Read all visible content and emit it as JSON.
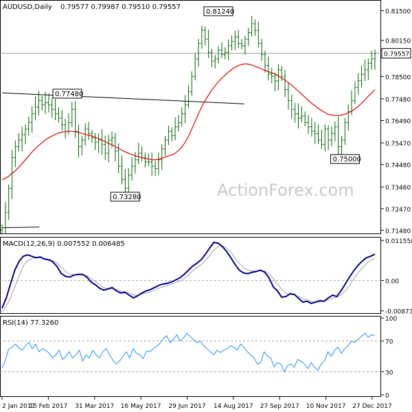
{
  "header": {
    "symbol": "AUDUSD,Daily",
    "ohlc": "0.79577 0.79987 0.79510 0.79557"
  },
  "watermark": "ActionForex.com",
  "colors": {
    "bars": "#006400",
    "ma": "#e00000",
    "macd": "#00008b",
    "signal": "#a0a0a0",
    "rsi": "#1e90ff",
    "frame": "#000000",
    "level": "#a0a0a0"
  },
  "chart_data": [
    {
      "type": "ohlc",
      "panel": "price",
      "ylim": [
        0.714,
        0.818
      ],
      "y_ticks": [
        "0.81500",
        "0.80150",
        "0.78500",
        "0.77480",
        "0.76490",
        "0.75470",
        "0.74480",
        "0.73460",
        "0.72470",
        "0.71480"
      ],
      "current_price": "0.79557",
      "annotations": [
        {
          "label": "0.81240",
          "x": 116,
          "value": 0.8124
        },
        {
          "label": "0.77480",
          "x": 35,
          "value": 0.7748
        },
        {
          "label": "0.73280",
          "x": 66,
          "value": 0.7328
        },
        {
          "label": "0.75000",
          "x": 184,
          "value": 0.75
        }
      ],
      "trendlines": [
        {
          "x1": 0,
          "v1": 0.7775,
          "x2": 65,
          "v2": 0.7725
        },
        {
          "x1": 0,
          "v1": 0.716,
          "x2": 10,
          "v2": 0.7163
        }
      ],
      "closes": [
        0.716,
        0.723,
        0.734,
        0.748,
        0.753,
        0.756,
        0.7585,
        0.761,
        0.764,
        0.768,
        0.771,
        0.774,
        0.772,
        0.773,
        0.772,
        0.77,
        0.768,
        0.766,
        0.763,
        0.76,
        0.764,
        0.77,
        0.76,
        0.753,
        0.756,
        0.761,
        0.759,
        0.757,
        0.755,
        0.756,
        0.754,
        0.75,
        0.756,
        0.757,
        0.751,
        0.744,
        0.738,
        0.734,
        0.74,
        0.744,
        0.747,
        0.75,
        0.748,
        0.746,
        0.746,
        0.744,
        0.743,
        0.747,
        0.752,
        0.756,
        0.76,
        0.758,
        0.762,
        0.764,
        0.768,
        0.772,
        0.778,
        0.785,
        0.793,
        0.8,
        0.806,
        0.802,
        0.796,
        0.792,
        0.793,
        0.797,
        0.795,
        0.796,
        0.799,
        0.801,
        0.803,
        0.8,
        0.799,
        0.802,
        0.805,
        0.809,
        0.806,
        0.8,
        0.795,
        0.79,
        0.786,
        0.785,
        0.783,
        0.788,
        0.785,
        0.779,
        0.774,
        0.77,
        0.768,
        0.766,
        0.767,
        0.764,
        0.762,
        0.76,
        0.759,
        0.756,
        0.754,
        0.761,
        0.756,
        0.759,
        0.762,
        0.753,
        0.756,
        0.764,
        0.769,
        0.774,
        0.78,
        0.783,
        0.786,
        0.788,
        0.791,
        0.793,
        0.7956
      ],
      "ma": [
        0.738,
        0.7385,
        0.7395,
        0.7408,
        0.742,
        0.7435,
        0.7452,
        0.747,
        0.7487,
        0.7505,
        0.752,
        0.7535,
        0.7548,
        0.756,
        0.757,
        0.7578,
        0.7586,
        0.7592,
        0.7596,
        0.7598,
        0.76,
        0.76,
        0.7598,
        0.7594,
        0.759,
        0.7586,
        0.7582,
        0.7578,
        0.7572,
        0.7566,
        0.756,
        0.7552,
        0.7545,
        0.7538,
        0.753,
        0.7522,
        0.7514,
        0.7506,
        0.75,
        0.7494,
        0.7488,
        0.7484,
        0.748,
        0.7476,
        0.7473,
        0.747,
        0.747,
        0.7472,
        0.7476,
        0.7482,
        0.7488,
        0.7492,
        0.75,
        0.7512,
        0.7528,
        0.755,
        0.7578,
        0.761,
        0.7645,
        0.768,
        0.7712,
        0.774,
        0.7765,
        0.7788,
        0.7808,
        0.7826,
        0.7842,
        0.7856,
        0.787,
        0.7882,
        0.7892,
        0.79,
        0.7905,
        0.7908,
        0.7906,
        0.7902,
        0.7896,
        0.789,
        0.7884,
        0.7878,
        0.7872,
        0.7866,
        0.786,
        0.7852,
        0.7843,
        0.7833,
        0.7822,
        0.781,
        0.7797,
        0.7783,
        0.7769,
        0.7755,
        0.7741,
        0.7728,
        0.7716,
        0.7704,
        0.7694,
        0.7685,
        0.7678,
        0.7674,
        0.7672,
        0.7672,
        0.7674,
        0.7678,
        0.7684,
        0.7692,
        0.7702,
        0.7714,
        0.7728,
        0.7744,
        0.776,
        0.7775,
        0.779
      ]
    },
    {
      "type": "line",
      "panel": "macd",
      "title": "MACD(12,26,9) 0.007552 0.006485",
      "ylim": [
        -0.0092,
        0.012
      ],
      "y_ticks": [
        "0.011558",
        "0.00",
        "-0.00873"
      ],
      "series": [
        {
          "name": "macd",
          "values": [
            -0.008,
            -0.005,
            -0.001,
            0.003,
            0.0055,
            0.007,
            0.0074,
            0.007,
            0.0066,
            0.0068,
            0.0062,
            0.006,
            0.0054,
            0.004,
            0.002,
            0.0012,
            0.001,
            0.0016,
            0.0018,
            0.0018,
            0.001,
            -0.0004,
            -0.0012,
            -0.0022,
            -0.0028,
            -0.0024,
            -0.002,
            -0.003,
            -0.0036,
            -0.0034,
            -0.0042,
            -0.005,
            -0.0044,
            -0.0036,
            -0.003,
            -0.0026,
            -0.002,
            -0.0014,
            -0.001,
            -0.0008,
            -0.0004,
            0.0002,
            0.0008,
            0.0018,
            0.003,
            0.0042,
            0.005,
            0.006,
            0.0076,
            0.0094,
            0.011,
            0.0108,
            0.0098,
            0.0084,
            0.0066,
            0.0046,
            0.003,
            0.0022,
            0.002,
            0.0024,
            0.0026,
            0.003,
            0.0024,
            0.0008,
            -0.0018,
            -0.003,
            -0.0048,
            -0.0046,
            -0.0038,
            -0.004,
            -0.0052,
            -0.0062,
            -0.006,
            -0.0066,
            -0.0062,
            -0.0058,
            -0.006,
            -0.005,
            -0.0042,
            -0.0046,
            -0.003,
            -0.001,
            0.001,
            0.0028,
            0.0044,
            0.0056,
            0.0066,
            0.007,
            0.0076
          ]
        },
        {
          "name": "signal",
          "values": [
            -0.009,
            -0.0074,
            -0.005,
            -0.002,
            0.0014,
            0.0042,
            0.0058,
            0.0064,
            0.0066,
            0.0066,
            0.0064,
            0.0062,
            0.0058,
            0.005,
            0.0038,
            0.0026,
            0.0018,
            0.0016,
            0.0016,
            0.0016,
            0.0014,
            0.0006,
            -0.0002,
            -0.0012,
            -0.002,
            -0.0024,
            -0.0024,
            -0.0026,
            -0.003,
            -0.0032,
            -0.0036,
            -0.0042,
            -0.0042,
            -0.004,
            -0.0036,
            -0.0032,
            -0.0028,
            -0.0022,
            -0.0018,
            -0.0014,
            -0.001,
            -0.0006,
            -0.0002,
            0.0006,
            0.0016,
            0.0028,
            0.0038,
            0.0046,
            0.0058,
            0.0072,
            0.0088,
            0.0098,
            0.01,
            0.0094,
            0.0082,
            0.0066,
            0.005,
            0.0038,
            0.003,
            0.0028,
            0.0027,
            0.0028,
            0.0027,
            0.002,
            0.0006,
            -0.001,
            -0.0026,
            -0.0036,
            -0.004,
            -0.0042,
            -0.0046,
            -0.0052,
            -0.0056,
            -0.006,
            -0.0062,
            -0.0062,
            -0.006,
            -0.0056,
            -0.005,
            -0.0048,
            -0.0042,
            -0.003,
            -0.0014,
            0.0004,
            0.0022,
            0.0036,
            0.0048,
            0.0058,
            0.0065
          ]
        }
      ]
    },
    {
      "type": "line",
      "panel": "rsi",
      "title": "RSI(14) 77.3260",
      "ylim": [
        0,
        100
      ],
      "y_ticks": [
        "100",
        "70",
        "30",
        "0"
      ],
      "levels": [
        70,
        30
      ],
      "series": [
        {
          "name": "rsi",
          "values": [
            35,
            45,
            60,
            62,
            66,
            61,
            58,
            64,
            68,
            60,
            66,
            56,
            60,
            58,
            54,
            48,
            52,
            58,
            46,
            50,
            56,
            48,
            52,
            58,
            44,
            52,
            48,
            58,
            52,
            48,
            56,
            60,
            52,
            45,
            40,
            44,
            50,
            56,
            48,
            60,
            54,
            52,
            47,
            57,
            56,
            60,
            63,
            67,
            73,
            77,
            68,
            72,
            78,
            70,
            74,
            80,
            76,
            72,
            68,
            70,
            64,
            60,
            56,
            52,
            58,
            55,
            58,
            60,
            64,
            62,
            58,
            66,
            62,
            56,
            52,
            48,
            40,
            42,
            56,
            50,
            48,
            36,
            42,
            40,
            30,
            38,
            40,
            36,
            46,
            44,
            40,
            34,
            42,
            36,
            32,
            40,
            44,
            56,
            50,
            58,
            62,
            54,
            60,
            64,
            70,
            68,
            72,
            76,
            80,
            75,
            78,
            77
          ]
        }
      ]
    }
  ],
  "x_axis": {
    "labels": [
      "2 Jan 2017",
      "15 Feb 2017",
      "31 Mar 2017",
      "16 May 2017",
      "29 Jun 2017",
      "14 Aug 2017",
      "27 Sep 2017",
      "10 Nov 2017",
      "27 Dec 2017"
    ]
  }
}
